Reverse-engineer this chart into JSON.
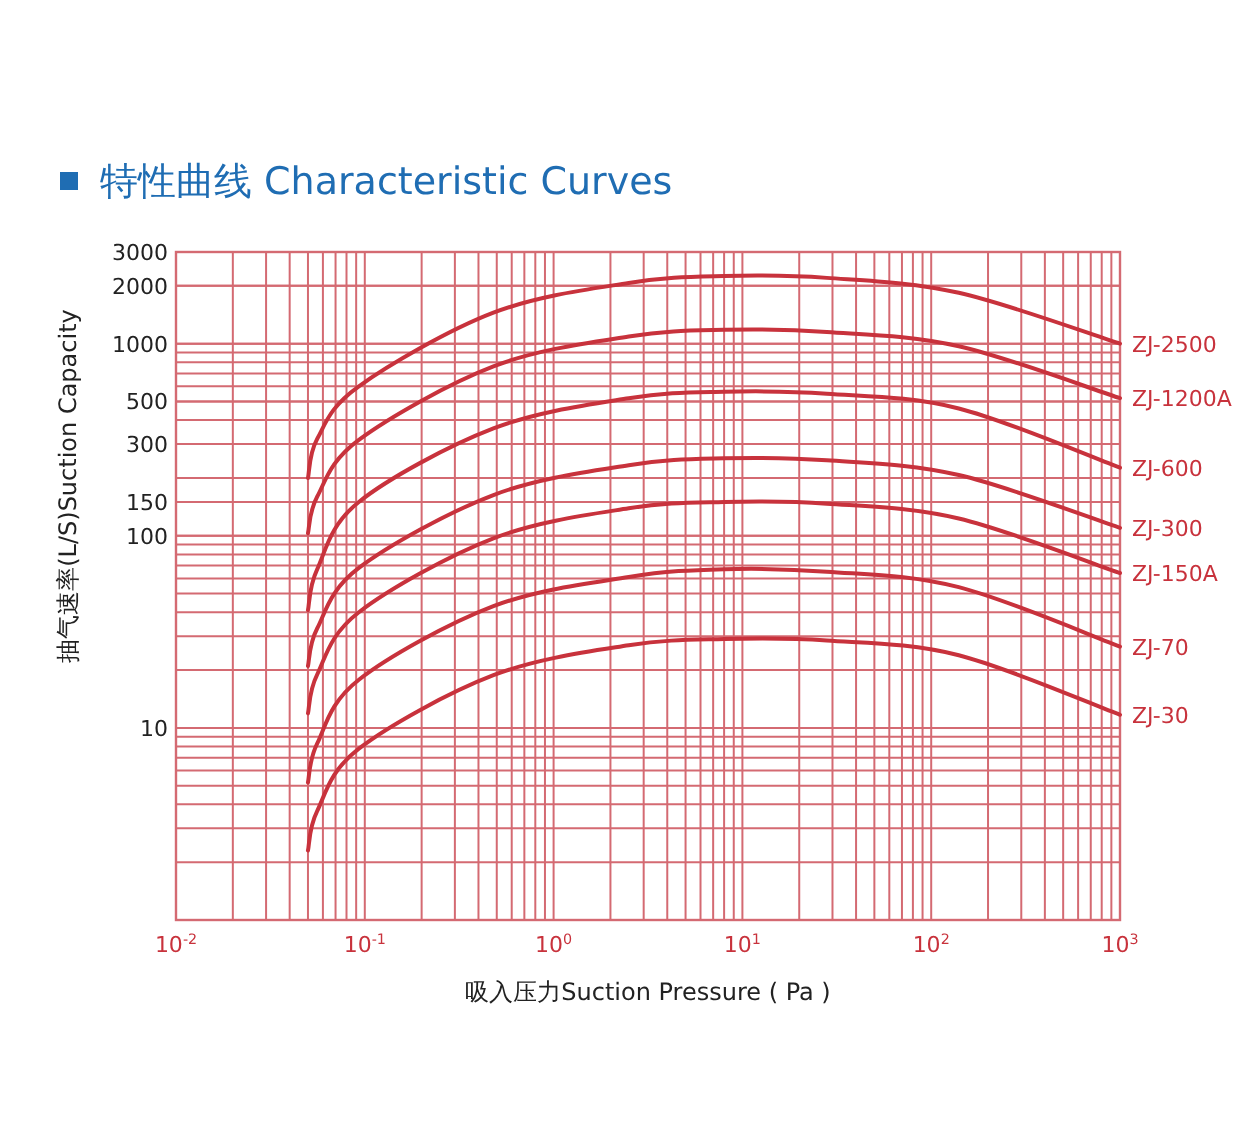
{
  "chart_data": {
    "type": "line",
    "title": "特性曲线 Characteristic Curves",
    "xlabel": "吸入压力Suction Pressure ( Pa )",
    "ylabel": "抽气速率(L/S)Suction Capacity",
    "log": "xy",
    "grid": true,
    "marker": "none",
    "line_style": "solid",
    "xlim": [
      0.01,
      1000
    ],
    "ylim": [
      1,
      3000
    ],
    "xticks": [
      {
        "value": 0.01,
        "label": "10$^{-2}$"
      },
      {
        "value": 0.1,
        "label": "10$^{-1}$"
      },
      {
        "value": 1,
        "label": "10$^{0}$"
      },
      {
        "value": 10,
        "label": "10$^{1}$"
      },
      {
        "value": 100,
        "label": "10$^{2}$"
      },
      {
        "value": 1000,
        "label": "10$^{3}$"
      }
    ],
    "yticks": [
      3000,
      2000,
      1000,
      500,
      300,
      150,
      100,
      10
    ],
    "x": [
      0.05,
      0.056,
      0.093,
      0.48,
      2.5,
      8,
      28,
      140,
      1000
    ],
    "series": [
      {
        "name": "ZJ-2500",
        "color": "#c8323c",
        "values": [
          200,
          320,
          600,
          1450,
          2070,
          2250,
          2200,
          1840,
          1000
        ]
      },
      {
        "name": "ZJ-1200A",
        "color": "#c8323c",
        "values": [
          103,
          160,
          316,
          762,
          1090,
          1180,
          1150,
          970,
          520
        ]
      },
      {
        "name": "ZJ-600",
        "color": "#c8323c",
        "values": [
          41,
          67,
          150,
          362,
          520,
          562,
          549,
          460,
          226
        ]
      },
      {
        "name": "ZJ-300",
        "color": "#c8323c",
        "values": [
          21,
          33,
          68,
          163,
          233,
          253,
          247,
          207,
          110
        ]
      },
      {
        "name": "ZJ-150A",
        "color": "#c8323c",
        "values": [
          11.9,
          19,
          40,
          97,
          139,
          150,
          147,
          123,
          64
        ]
      },
      {
        "name": "ZJ-70",
        "color": "#c8323c",
        "values": [
          5.2,
          8.3,
          17.8,
          43,
          61,
          67,
          65,
          54,
          26.5
        ]
      },
      {
        "name": "ZJ-30",
        "color": "#c8323c",
        "values": [
          2.3,
          3.7,
          7.8,
          18.8,
          26.9,
          29,
          28.5,
          23.9,
          11.7
        ]
      }
    ]
  }
}
